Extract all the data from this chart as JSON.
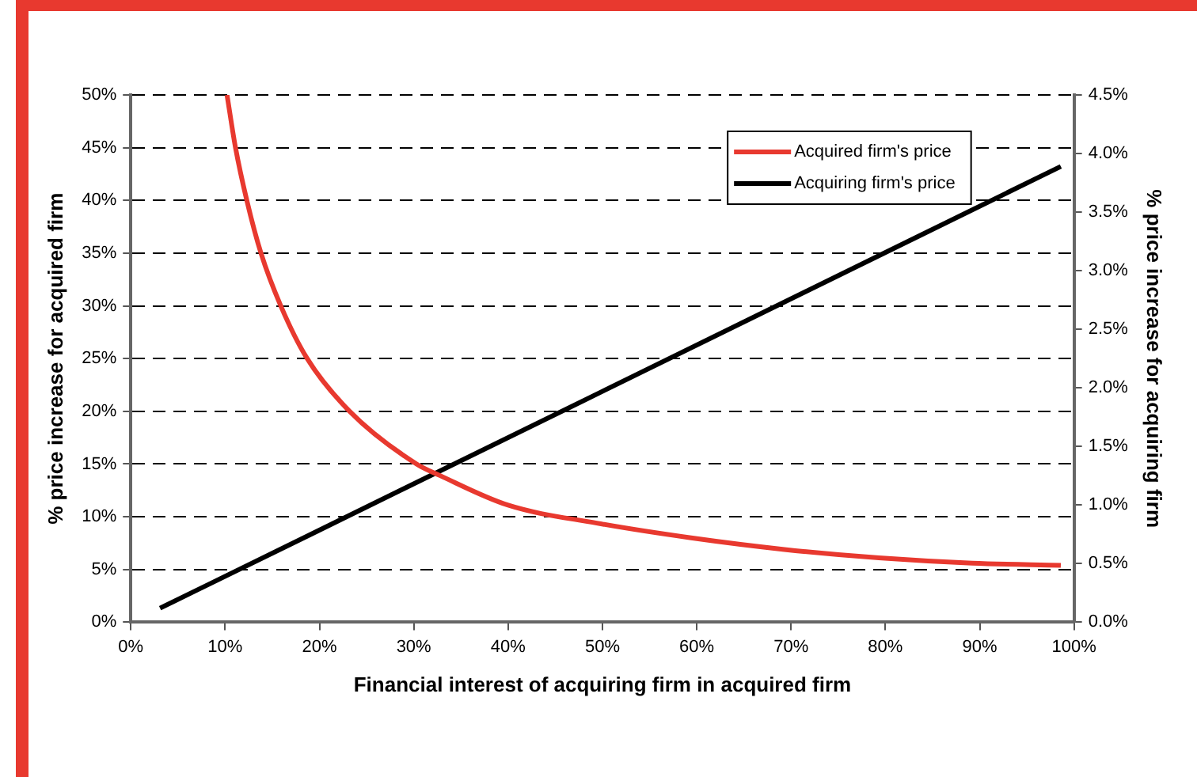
{
  "chart_data": {
    "type": "line",
    "xlabel": "Financial interest of acquiring firm in acquired firm",
    "ylabel": "% price increase for acquired firm",
    "y2label": "% price increase for acquiring firm",
    "xlim": [
      0,
      100
    ],
    "xticks": [
      {
        "value": 0,
        "label": "0%"
      },
      {
        "value": 10,
        "label": "10%"
      },
      {
        "value": 20,
        "label": "20%"
      },
      {
        "value": 30,
        "label": "30%"
      },
      {
        "value": 40,
        "label": "40%"
      },
      {
        "value": 50,
        "label": "50%"
      },
      {
        "value": 60,
        "label": "60%"
      },
      {
        "value": 70,
        "label": "70%"
      },
      {
        "value": 80,
        "label": "80%"
      },
      {
        "value": 90,
        "label": "90%"
      },
      {
        "value": 100,
        "label": "100%"
      }
    ],
    "ylim": [
      0,
      50
    ],
    "yticks": [
      {
        "value": 0,
        "label": "0%"
      },
      {
        "value": 5,
        "label": "5%"
      },
      {
        "value": 10,
        "label": "10%"
      },
      {
        "value": 15,
        "label": "15%"
      },
      {
        "value": 20,
        "label": "20%"
      },
      {
        "value": 25,
        "label": "25%"
      },
      {
        "value": 30,
        "label": "30%"
      },
      {
        "value": 35,
        "label": "35%"
      },
      {
        "value": 40,
        "label": "40%"
      },
      {
        "value": 45,
        "label": "45%"
      },
      {
        "value": 50,
        "label": "50%"
      }
    ],
    "y2lim": [
      0,
      4.5
    ],
    "y2ticks": [
      {
        "value": 0,
        "label": "0.0%"
      },
      {
        "value": 0.5,
        "label": "0.5%"
      },
      {
        "value": 1,
        "label": "1.0%"
      },
      {
        "value": 1.5,
        "label": "1.5%"
      },
      {
        "value": 2,
        "label": "2.0%"
      },
      {
        "value": 2.5,
        "label": "2.5%"
      },
      {
        "value": 3,
        "label": "3.0%"
      },
      {
        "value": 3.5,
        "label": "3.5%"
      },
      {
        "value": 4,
        "label": "4.0%"
      },
      {
        "value": 4.5,
        "label": "4.5%"
      }
    ],
    "grid": "y",
    "legend": "top right",
    "marker": "none",
    "line_style": "solid",
    "series": [
      {
        "name": "Acquired firm's price",
        "color": "#e8392f",
        "x": [
          10.2,
          11.1,
          12.3,
          13.8,
          15.9,
          18.7,
          23.2,
          30.3,
          32.8,
          40,
          49.4,
          59.4,
          69.3,
          79.3,
          89.2,
          98.6
        ],
        "values": [
          50,
          45,
          40,
          35,
          30,
          25,
          20,
          15,
          13.9,
          11.1,
          9.4,
          8,
          6.9,
          6.1,
          5.6,
          5.4
        ]
      },
      {
        "name": "Acquiring firm's price",
        "color": "#000000",
        "axis": "y2",
        "x": [
          3.1,
          50,
          98.6
        ],
        "values": [
          0.12,
          1.97,
          3.89
        ]
      }
    ]
  }
}
